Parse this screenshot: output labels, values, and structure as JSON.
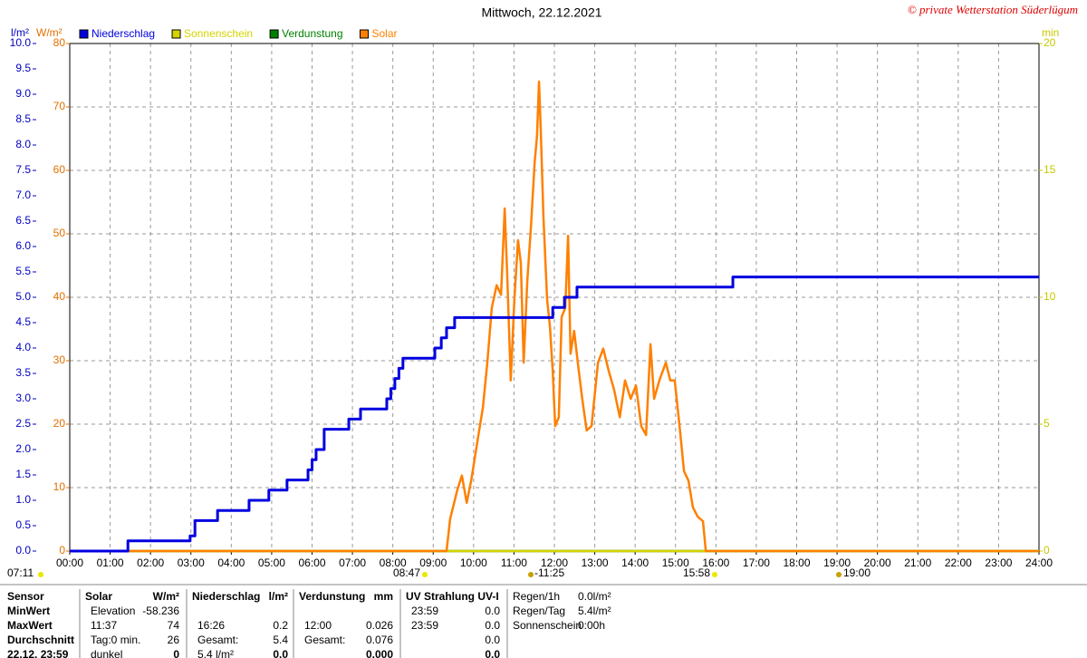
{
  "chart_data": {
    "type": "line",
    "title": "Mittwoch, 22.12.2021",
    "copyright": "© private Wetterstation Süderlügum",
    "y_unit": "l/m²",
    "y2_unit": "W/m²",
    "y3_unit": "min",
    "xlim": [
      0,
      24
    ],
    "xticks": [
      {
        "value": 0,
        "label": "00:00"
      },
      {
        "value": 1,
        "label": "01:00"
      },
      {
        "value": 2,
        "label": "02:00"
      },
      {
        "value": 3,
        "label": "03:00"
      },
      {
        "value": 4,
        "label": "04:00"
      },
      {
        "value": 5,
        "label": "05:00"
      },
      {
        "value": 6,
        "label": "06:00"
      },
      {
        "value": 7,
        "label": "07:00"
      },
      {
        "value": 8,
        "label": "08:00"
      },
      {
        "value": 9,
        "label": "09:00"
      },
      {
        "value": 10,
        "label": "10:00"
      },
      {
        "value": 11,
        "label": "11:00"
      },
      {
        "value": 12,
        "label": "12:00"
      },
      {
        "value": 13,
        "label": "13:00"
      },
      {
        "value": 14,
        "label": "14:00"
      },
      {
        "value": 15,
        "label": "15:00"
      },
      {
        "value": 16,
        "label": "16:00"
      },
      {
        "value": 17,
        "label": "17:00"
      },
      {
        "value": 18,
        "label": "18:00"
      },
      {
        "value": 19,
        "label": "19:00"
      },
      {
        "value": 20,
        "label": "20:00"
      },
      {
        "value": 21,
        "label": "21:00"
      },
      {
        "value": 22,
        "label": "22:00"
      },
      {
        "value": 23,
        "label": "23:00"
      },
      {
        "value": 24,
        "label": "24:00"
      }
    ],
    "ylim": [
      0,
      10
    ],
    "yticks": [
      {
        "value": 0,
        "label": "0.0"
      },
      0.5,
      {
        "value": 1,
        "label": "1.0"
      },
      1.5,
      {
        "value": 2,
        "label": "2.0"
      },
      2.5,
      {
        "value": 3,
        "label": "3.0"
      },
      3.5,
      {
        "value": 4,
        "label": "4.0"
      },
      4.5,
      {
        "value": 5,
        "label": "5.0"
      },
      5.5,
      {
        "value": 6,
        "label": "6.0"
      },
      6.5,
      {
        "value": 7,
        "label": "7.0"
      },
      7.5,
      {
        "value": 8,
        "label": "8.0"
      },
      8.5,
      {
        "value": 9,
        "label": "9.0"
      },
      9.5,
      {
        "value": 10,
        "label": "10.0"
      }
    ],
    "y2lim": [
      0,
      80
    ],
    "y2ticks": [
      0,
      10,
      20,
      30,
      40,
      50,
      60,
      70,
      80
    ],
    "y3lim": [
      0,
      20
    ],
    "y3ticks": [
      0,
      5,
      10,
      15,
      20
    ],
    "grid": true,
    "series": [
      {
        "name": "Niederschlag",
        "color": "#0000e0",
        "step": true,
        "x": [
          0,
          1.44,
          2.98,
          3.1,
          3.66,
          4.44,
          4.93,
          5.38,
          5.9,
          6.0,
          6.1,
          6.3,
          6.91,
          7.2,
          7.85,
          7.95,
          8.05,
          8.15,
          8.25,
          9.04,
          9.2,
          9.33,
          9.53,
          11.96,
          12.25,
          12.56,
          16.42,
          24
        ],
        "values": [
          0,
          0.2,
          0.3,
          0.6,
          0.8,
          1.0,
          1.2,
          1.4,
          1.6,
          1.8,
          2.0,
          2.4,
          2.6,
          2.8,
          3.0,
          3.2,
          3.4,
          3.6,
          3.8,
          4.0,
          4.2,
          4.4,
          4.6,
          4.8,
          5.0,
          5.2,
          5.4,
          5.4
        ]
      },
      {
        "name": "Sonnenschein",
        "color": "#d4d400",
        "axis": "y3",
        "x": [
          0,
          24
        ],
        "values": [
          0,
          0
        ]
      },
      {
        "name": "Verdunstung",
        "color": "#008000",
        "x": [
          0,
          24
        ],
        "values": [
          0,
          0
        ]
      },
      {
        "name": "Solar",
        "color": "#ff8000",
        "axis": "y2",
        "x": [
          0,
          9.33,
          9.42,
          9.6,
          9.71,
          9.83,
          9.94,
          10.12,
          10.23,
          10.34,
          10.45,
          10.57,
          10.68,
          10.77,
          10.83,
          10.92,
          11.01,
          11.1,
          11.17,
          11.24,
          11.33,
          11.42,
          11.51,
          11.57,
          11.62,
          11.66,
          11.73,
          11.82,
          11.89,
          11.96,
          12.02,
          12.11,
          12.18,
          12.27,
          12.34,
          12.4,
          12.49,
          12.58,
          12.69,
          12.8,
          12.92,
          13.08,
          13.21,
          13.35,
          13.48,
          13.62,
          13.75,
          13.89,
          14.02,
          14.15,
          14.27,
          14.38,
          14.47,
          14.6,
          14.76,
          14.87,
          14.98,
          15.1,
          15.21,
          15.32,
          15.43,
          15.55,
          15.68,
          15.75,
          24
        ],
        "values": [
          0,
          0,
          5.1,
          9.7,
          11.9,
          7.6,
          11.1,
          18.3,
          22.6,
          29.7,
          38.3,
          41.9,
          40.4,
          54.0,
          44.0,
          26.9,
          39.7,
          49.0,
          45.4,
          29.7,
          42.6,
          51.1,
          61.1,
          65.4,
          74,
          66.9,
          52.6,
          39.7,
          35.4,
          28.3,
          19.7,
          21.1,
          36.9,
          38.3,
          49.7,
          31.1,
          34.7,
          29.7,
          24.0,
          19.0,
          19.7,
          29.7,
          31.9,
          28.3,
          25.4,
          21.1,
          26.9,
          24.0,
          26.1,
          19.7,
          18.3,
          32.6,
          24.0,
          26.9,
          29.7,
          26.9,
          26.9,
          19.7,
          12.6,
          11.1,
          6.9,
          5.4,
          4.7,
          0,
          0
        ]
      }
    ],
    "markers": [
      "07:11",
      "08:47",
      "-11:25",
      "15:58",
      "19:00"
    ]
  },
  "stats": {
    "sensor": {
      "header": "Sensor",
      "rows": [
        "MinWert",
        "MaxWert",
        "Durchschnitt",
        "22.12. 23:59"
      ]
    },
    "groups": [
      {
        "header": "Solar",
        "unit": "W/m²",
        "rows": [
          [
            "Elevation",
            "-58.236"
          ],
          [
            "11:37",
            "74"
          ],
          [
            "Tag:0 min.",
            "26"
          ],
          [
            "dunkel",
            "0"
          ]
        ]
      },
      {
        "header": "Niederschlag",
        "unit": "l/m²",
        "rows": [
          null,
          [
            "16:26",
            "0.2"
          ],
          [
            "Gesamt:",
            "5.4"
          ],
          [
            "5.4 l/m²",
            "0.0"
          ]
        ]
      },
      {
        "header": "Verdunstung",
        "unit": "mm",
        "rows": [
          null,
          [
            "12:00",
            "0.026"
          ],
          [
            "Gesamt:",
            "0.076"
          ],
          [
            null,
            "0.000"
          ]
        ]
      },
      {
        "header": "UV Strahlung UV-I",
        "rows": [
          [
            "23:59",
            "0.0"
          ],
          [
            "23:59",
            "0.0"
          ],
          [
            null,
            "0.0"
          ],
          [
            null,
            "0.0"
          ]
        ]
      }
    ],
    "extra": [
      [
        "Regen/1h",
        "0.0l/m²"
      ],
      [
        "Regen/Tag",
        "5.4l/m²"
      ],
      [
        "Sonnenschein",
        "0:00h"
      ]
    ]
  }
}
